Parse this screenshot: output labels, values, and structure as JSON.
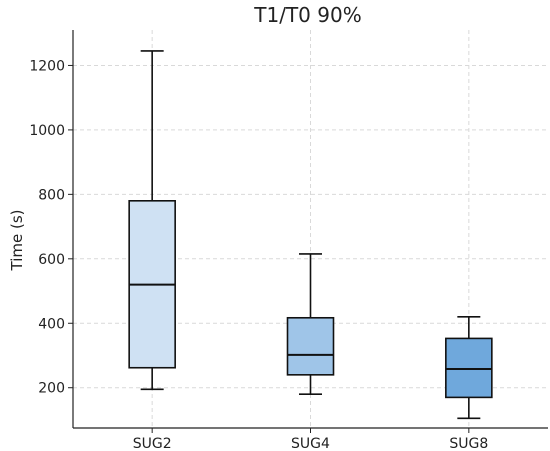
{
  "chart_data": {
    "type": "box",
    "title": "T1/T0 90%",
    "xlabel": "",
    "ylabel": "Time (s)",
    "ylim": [
      75,
      1310
    ],
    "yticks": [
      200,
      400,
      600,
      800,
      1000,
      1200
    ],
    "grid": true,
    "categories": [
      "SUG2",
      "SUG4",
      "SUG8"
    ],
    "boxes": [
      {
        "category": "SUG2",
        "whisker_low": 195,
        "q1": 262,
        "median": 520,
        "q3": 780,
        "whisker_high": 1245,
        "color": "#cfe1f3"
      },
      {
        "category": "SUG4",
        "whisker_low": 180,
        "q1": 240,
        "median": 302,
        "q3": 417,
        "whisker_high": 615,
        "color": "#9fc5e8"
      },
      {
        "category": "SUG8",
        "whisker_low": 105,
        "q1": 170,
        "median": 258,
        "q3": 353,
        "whisker_high": 420,
        "color": "#6fa8dc"
      }
    ]
  }
}
